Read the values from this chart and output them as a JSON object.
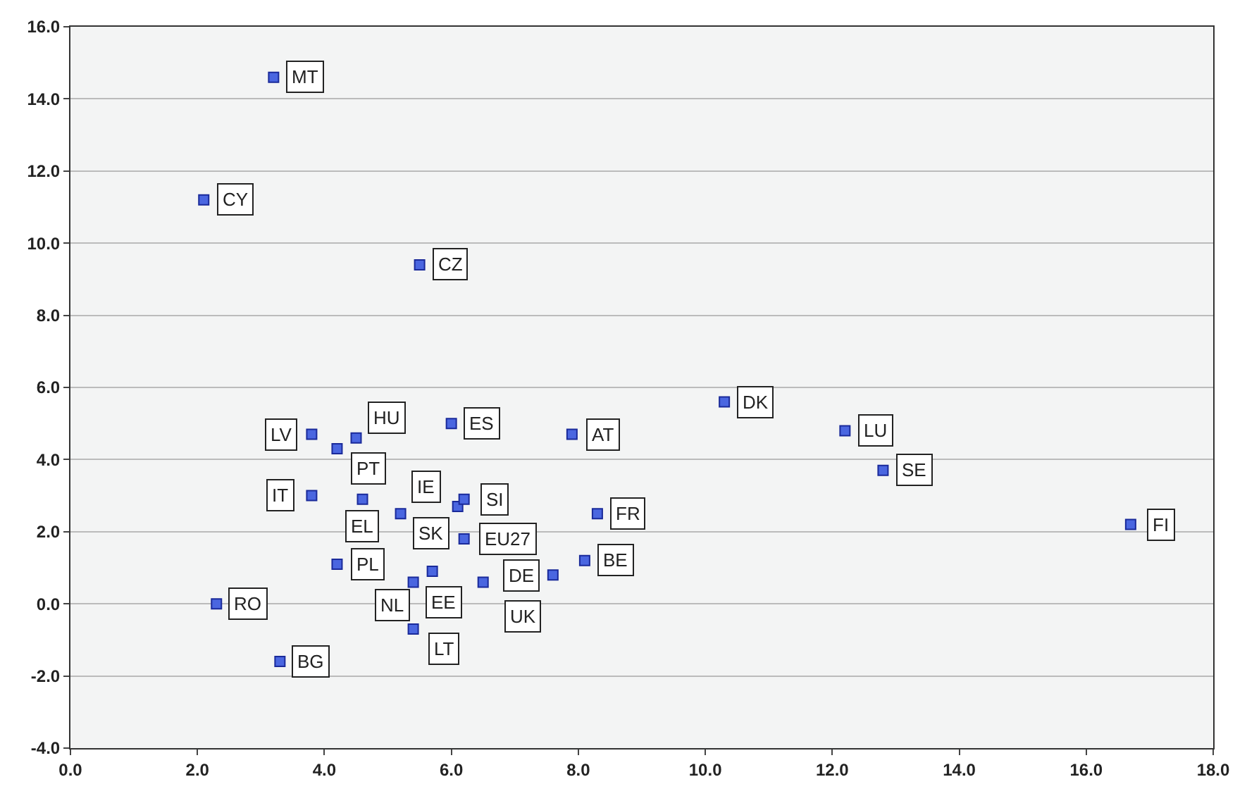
{
  "chart_data": {
    "type": "scatter",
    "xlim": [
      0,
      18
    ],
    "xticks": [
      {
        "value": 0,
        "label": "0.0"
      },
      {
        "value": 2,
        "label": "2.0"
      },
      {
        "value": 4,
        "label": "4.0"
      },
      {
        "value": 6,
        "label": "6.0"
      },
      {
        "value": 8,
        "label": "8.0"
      },
      {
        "value": 10,
        "label": "10.0"
      },
      {
        "value": 12,
        "label": "12.0"
      },
      {
        "value": 14,
        "label": "14.0"
      },
      {
        "value": 16,
        "label": "16.0"
      },
      {
        "value": 18,
        "label": "18.0"
      }
    ],
    "ylim": [
      -4,
      16
    ],
    "yticks": [
      {
        "value": -4,
        "label": "-4.0"
      },
      {
        "value": -2,
        "label": "-2.0"
      },
      {
        "value": 0,
        "label": "0.0"
      },
      {
        "value": 2,
        "label": "2.0"
      },
      {
        "value": 4,
        "label": "4.0"
      },
      {
        "value": 6,
        "label": "6.0"
      },
      {
        "value": 8,
        "label": "8.0"
      },
      {
        "value": 10,
        "label": "10.0"
      },
      {
        "value": 12,
        "label": "12.0"
      },
      {
        "value": 14,
        "label": "14.0"
      },
      {
        "value": 16,
        "label": "16.0"
      }
    ],
    "grid": "y",
    "marker": "square",
    "legend": false,
    "series": [
      {
        "color": "#4a66e0",
        "x": [
          3.2,
          2.1,
          5.5,
          10.3,
          7.9,
          12.2,
          12.8,
          8.3,
          16.7,
          8.1,
          7.6,
          3.8,
          4.2,
          4.5,
          6.0,
          3.8,
          4.6,
          5.2,
          6.1,
          6.2,
          6.2,
          4.2,
          2.3,
          5.4,
          5.7,
          6.5,
          5.4,
          3.3
        ],
        "values": [
          14.6,
          11.2,
          9.4,
          5.6,
          4.7,
          4.8,
          3.7,
          2.5,
          2.2,
          1.2,
          0.8,
          4.7,
          4.3,
          4.6,
          5.0,
          3.0,
          2.9,
          2.5,
          2.7,
          2.9,
          1.8,
          1.1,
          0.0,
          0.6,
          0.9,
          0.6,
          -0.7,
          -1.6
        ],
        "value_labels": [
          "MT",
          "CY",
          "CZ",
          "DK",
          "AT",
          "LU",
          "SE",
          "FR",
          "FI",
          "BE",
          "DE",
          "LV",
          "PT",
          "HU",
          "ES",
          "IT",
          "EL",
          "SK",
          "IE",
          "SI",
          "EU27",
          "PL",
          "RO",
          "EE",
          "NL",
          "UK",
          "LT",
          "BG"
        ]
      }
    ]
  }
}
